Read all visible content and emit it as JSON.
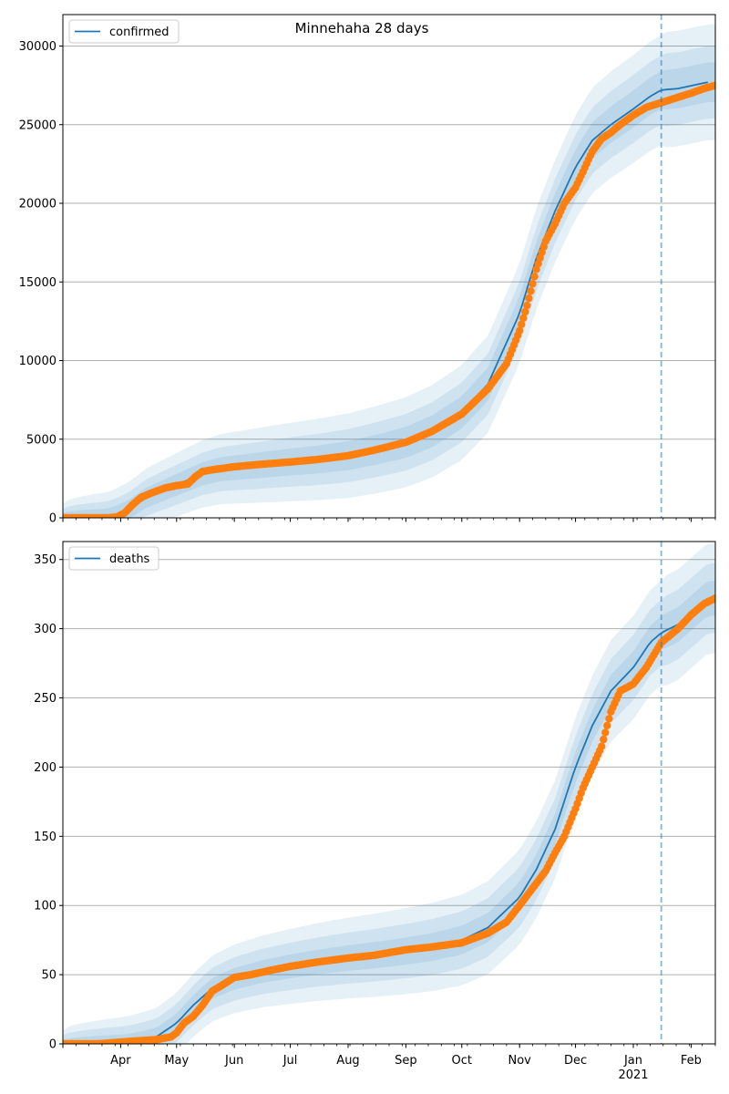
{
  "title": "Minnehaha 28 days",
  "colors": {
    "fit_line": "#1f77b4",
    "band": "#1f77b4",
    "observed": "#ff7f0e",
    "grid": "#b0b0b0",
    "vline": "#1f77b4"
  },
  "chart_data": [
    {
      "type": "line",
      "title": "Minnehaha 28 days",
      "series": [
        {
          "name": "confirmed",
          "kind": "fit",
          "x": [
            "2020-03-01",
            "2020-03-26",
            "2020-04-05",
            "2020-04-15",
            "2020-04-25",
            "2020-05-05",
            "2020-05-15",
            "2020-05-25",
            "2020-06-15",
            "2020-07-01",
            "2020-07-15",
            "2020-08-01",
            "2020-08-15",
            "2020-09-01",
            "2020-09-15",
            "2020-10-01",
            "2020-10-15",
            "2020-11-01",
            "2020-11-10",
            "2020-11-20",
            "2020-12-01",
            "2020-12-10",
            "2020-12-20",
            "2021-01-01",
            "2021-01-10",
            "2021-01-16",
            "2021-01-25",
            "2021-02-10"
          ],
          "y": [
            0,
            50,
            500,
            1300,
            1800,
            2300,
            2800,
            3100,
            3350,
            3550,
            3700,
            3950,
            4300,
            4800,
            5500,
            6700,
            8500,
            13000,
            16500,
            19500,
            22300,
            24000,
            25000,
            26000,
            26800,
            27200,
            27300,
            27700
          ]
        },
        {
          "name": "confirmed observed",
          "kind": "observed",
          "x": [
            "2020-03-01",
            "2020-03-15",
            "2020-03-25",
            "2020-03-30",
            "2020-04-03",
            "2020-04-08",
            "2020-04-12",
            "2020-04-18",
            "2020-04-25",
            "2020-05-01",
            "2020-05-07",
            "2020-05-11",
            "2020-05-15",
            "2020-05-20",
            "2020-06-01",
            "2020-06-15",
            "2020-07-01",
            "2020-07-15",
            "2020-08-01",
            "2020-08-15",
            "2020-09-01",
            "2020-09-15",
            "2020-10-01",
            "2020-10-15",
            "2020-10-25",
            "2020-11-01",
            "2020-11-05",
            "2020-11-10",
            "2020-11-15",
            "2020-11-20",
            "2020-11-25",
            "2020-12-01",
            "2020-12-05",
            "2020-12-10",
            "2020-12-15",
            "2020-12-20",
            "2020-12-25",
            "2021-01-01",
            "2021-01-08",
            "2021-01-16",
            "2021-01-24",
            "2021-02-01",
            "2021-02-08",
            "2021-02-14"
          ],
          "y": [
            0,
            0,
            0,
            50,
            300,
            900,
            1300,
            1600,
            1900,
            2050,
            2150,
            2600,
            2950,
            3050,
            3250,
            3400,
            3550,
            3700,
            3950,
            4300,
            4800,
            5500,
            6600,
            8200,
            9800,
            11900,
            13500,
            15800,
            17600,
            18700,
            20000,
            21000,
            22000,
            23300,
            24100,
            24500,
            25000,
            25600,
            26100,
            26400,
            26700,
            27000,
            27300,
            27500
          ]
        }
      ],
      "legend": [
        "confirmed"
      ],
      "legend_position": "upper left",
      "xlim": [
        "2020-03-01",
        "2021-02-14"
      ],
      "ylim": [
        0,
        32000
      ],
      "yticks": [
        0,
        5000,
        10000,
        15000,
        20000,
        25000,
        30000
      ],
      "ytick_labels": [
        "0",
        "5000",
        "10000",
        "15000",
        "20000",
        "25000",
        "30000"
      ],
      "vline_x": "2021-01-16",
      "band_widths": [
        3500,
        2200,
        1200
      ],
      "grid": "horizontal"
    },
    {
      "type": "line",
      "series": [
        {
          "name": "deaths",
          "kind": "fit",
          "x": [
            "2020-03-01",
            "2020-04-05",
            "2020-04-20",
            "2020-05-01",
            "2020-05-10",
            "2020-05-20",
            "2020-06-01",
            "2020-06-15",
            "2020-07-01",
            "2020-07-15",
            "2020-08-01",
            "2020-08-15",
            "2020-09-01",
            "2020-09-15",
            "2020-10-01",
            "2020-10-15",
            "2020-11-01",
            "2020-11-10",
            "2020-11-20",
            "2020-12-01",
            "2020-12-10",
            "2020-12-20",
            "2021-01-01",
            "2021-01-10",
            "2021-01-16",
            "2021-01-25",
            "2021-02-10"
          ],
          "y": [
            0,
            1,
            5,
            15,
            28,
            40,
            47,
            52,
            56,
            59,
            62,
            64,
            67,
            70,
            75,
            84,
            106,
            126,
            155,
            200,
            230,
            255,
            272,
            290,
            297,
            303,
            322
          ]
        },
        {
          "name": "deaths observed",
          "kind": "observed",
          "x": [
            "2020-03-01",
            "2020-03-20",
            "2020-04-08",
            "2020-04-20",
            "2020-04-28",
            "2020-05-01",
            "2020-05-05",
            "2020-05-10",
            "2020-05-15",
            "2020-05-20",
            "2020-05-25",
            "2020-06-01",
            "2020-06-10",
            "2020-06-20",
            "2020-07-01",
            "2020-07-15",
            "2020-08-01",
            "2020-08-15",
            "2020-09-01",
            "2020-09-15",
            "2020-10-01",
            "2020-10-15",
            "2020-10-25",
            "2020-11-01",
            "2020-11-10",
            "2020-11-15",
            "2020-11-20",
            "2020-11-25",
            "2020-12-01",
            "2020-12-05",
            "2020-12-10",
            "2020-12-15",
            "2020-12-20",
            "2020-12-25",
            "2021-01-01",
            "2021-01-08",
            "2021-01-16",
            "2021-01-25",
            "2021-02-01",
            "2021-02-08",
            "2021-02-14"
          ],
          "y": [
            0,
            0,
            2,
            3,
            5,
            8,
            15,
            20,
            28,
            38,
            42,
            48,
            50,
            53,
            56,
            59,
            62,
            64,
            68,
            70,
            73,
            80,
            88,
            100,
            116,
            125,
            138,
            150,
            170,
            185,
            200,
            215,
            240,
            255,
            260,
            272,
            290,
            300,
            310,
            318,
            322
          ]
        }
      ],
      "legend": [
        "deaths"
      ],
      "legend_position": "upper left",
      "xlim": [
        "2020-03-01",
        "2021-02-14"
      ],
      "ylim": [
        0,
        363
      ],
      "yticks": [
        0,
        50,
        100,
        150,
        200,
        250,
        300,
        350
      ],
      "ytick_labels": [
        "0",
        "50",
        "100",
        "150",
        "200",
        "250",
        "300",
        "350"
      ],
      "xtick_labels": [
        "Apr",
        "May",
        "Jun",
        "Jul",
        "Aug",
        "Sep",
        "Oct",
        "Nov",
        "Dec",
        "Jan",
        "Feb"
      ],
      "xtick_dates": [
        "2020-04-01",
        "2020-05-01",
        "2020-06-01",
        "2020-07-01",
        "2020-08-01",
        "2020-09-01",
        "2020-10-01",
        "2020-11-01",
        "2020-12-01",
        "2021-01-01",
        "2021-02-01"
      ],
      "year_label": "2021",
      "vline_x": "2021-01-16",
      "band_widths": [
        38,
        24,
        12
      ],
      "grid": "horizontal"
    }
  ]
}
